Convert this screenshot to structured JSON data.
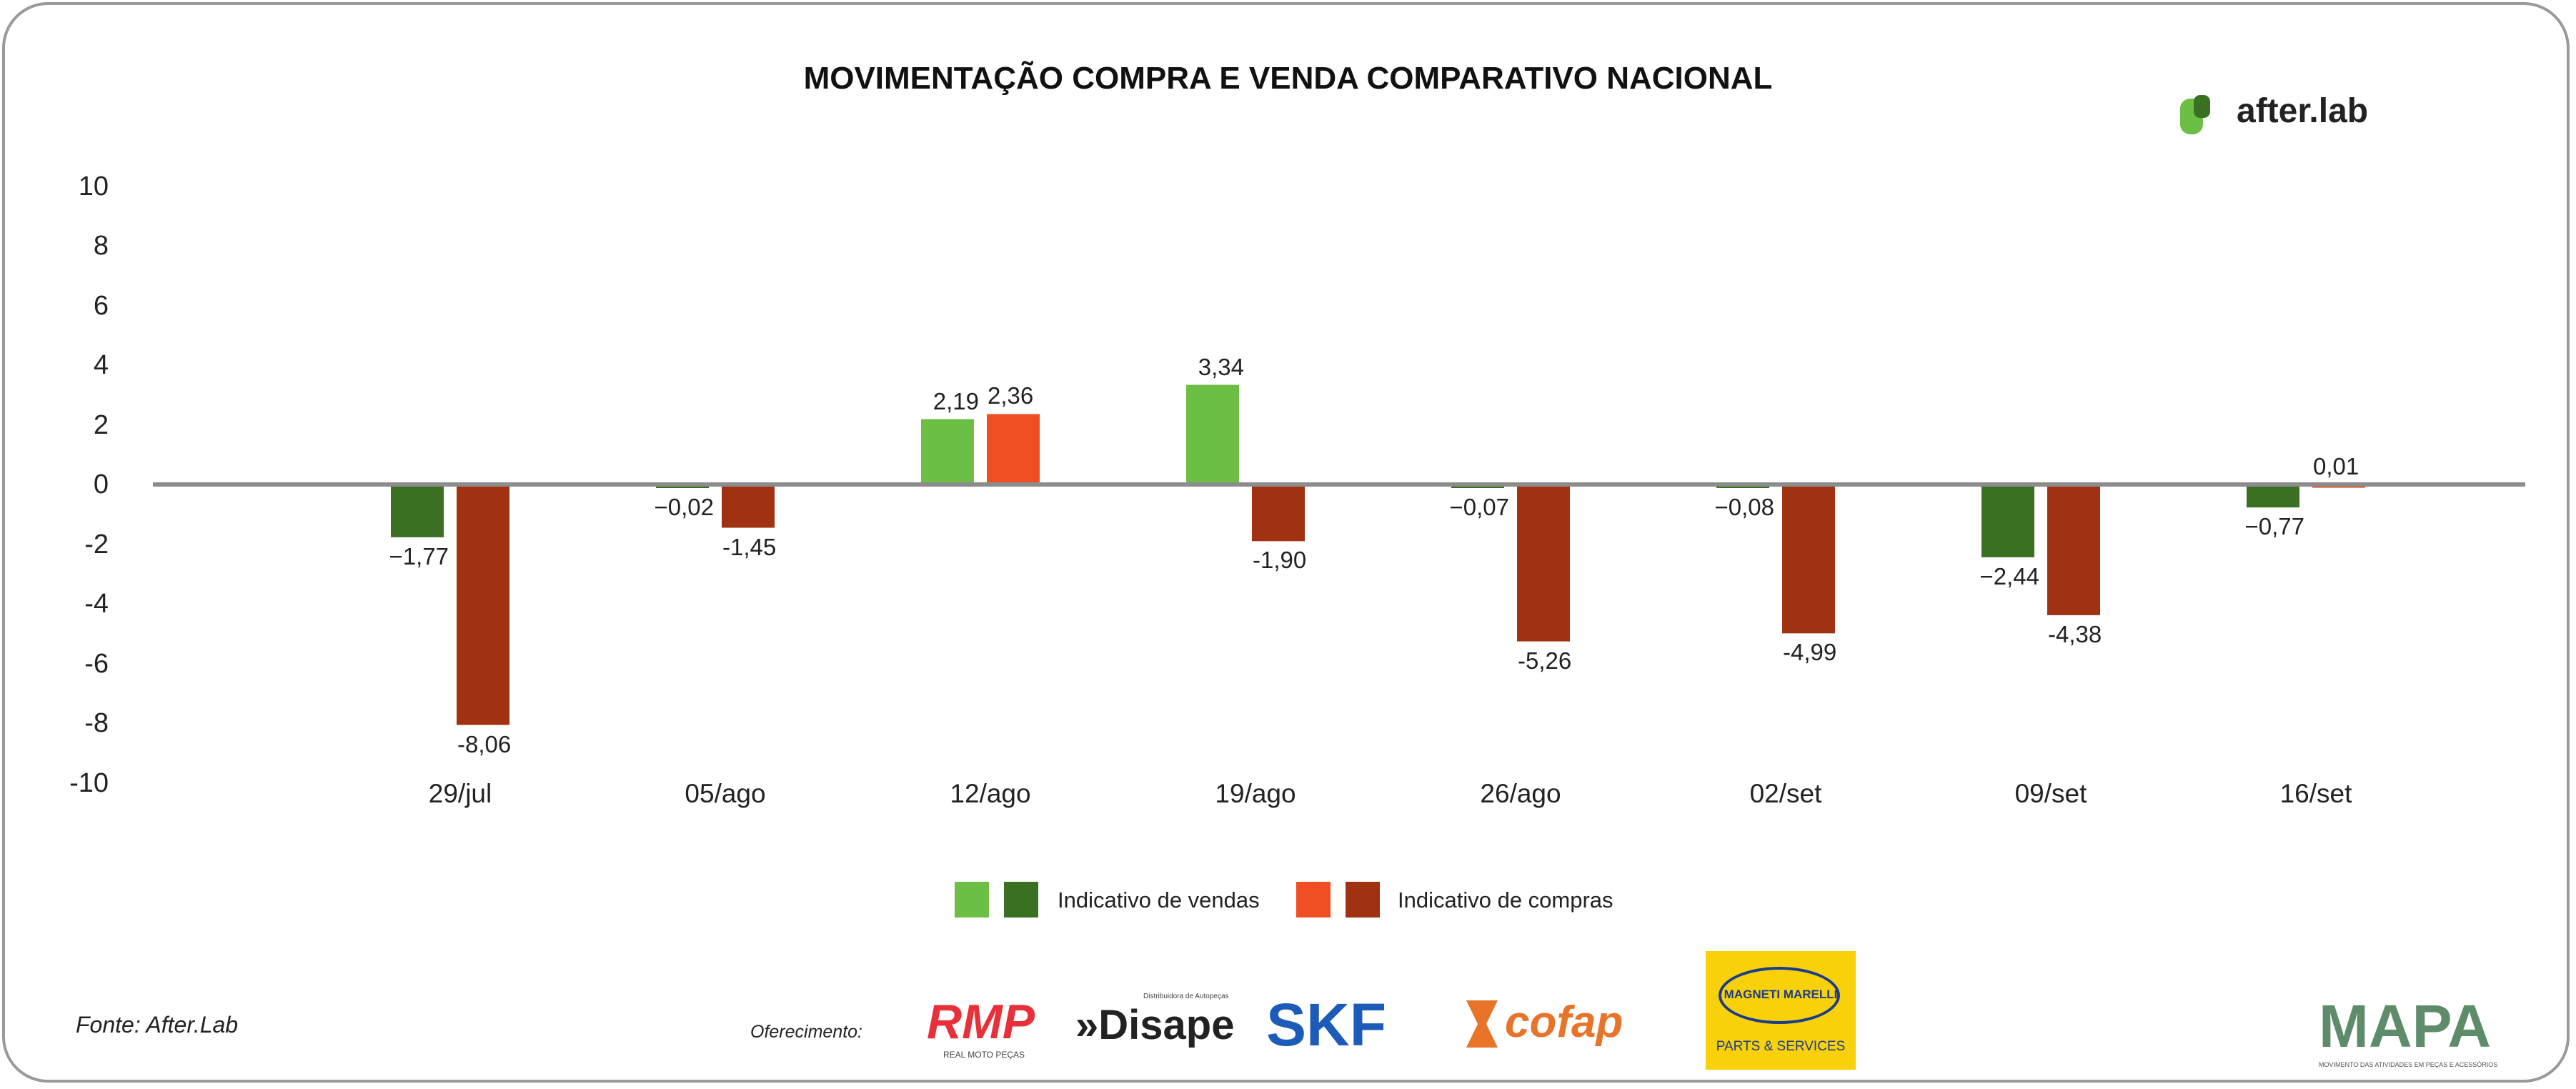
{
  "chart_data": {
    "type": "bar",
    "title": "MOVIMENTAÇÃO COMPRA E VENDA COMPARATIVO NACIONAL",
    "categories": [
      "29/jul",
      "05/ago",
      "12/ago",
      "19/ago",
      "26/ago",
      "02/set",
      "09/set",
      "16/set"
    ],
    "series": [
      {
        "name": "Indicativo de vendas",
        "values": [
          -1.77,
          -0.02,
          2.19,
          3.34,
          -0.07,
          -0.08,
          -2.44,
          -0.77
        ],
        "labels": [
          "−1,77",
          "−0,02",
          "2,19",
          "3,34",
          "−0,07",
          "−0,08",
          "−2,44",
          "−0,77"
        ],
        "color_positive": "#6DBE45",
        "color_negative": "#3A7022"
      },
      {
        "name": "Indicativo de compras",
        "values": [
          -8.06,
          -1.45,
          2.36,
          -1.9,
          -5.26,
          -4.99,
          -4.38,
          0.01
        ],
        "labels": [
          "-8,06",
          "-1,45",
          "2,36",
          "-1,90",
          "-5,26",
          "-4,99",
          "-4,38",
          "0,01"
        ],
        "color_positive": "#F04E23",
        "color_negative": "#A03212"
      }
    ],
    "ylim": [
      -10,
      10
    ],
    "yticks": [
      10,
      8,
      6,
      4,
      2,
      0,
      -2,
      -4,
      -6,
      -8,
      -10
    ],
    "grid": false,
    "legend": "bottom"
  },
  "brand": {
    "logo": "after.lab",
    "accent": "#6DBE45"
  },
  "footer": {
    "source": "Fonte: After.Lab",
    "offering": "Oferecimento:",
    "sponsors": [
      "RMP",
      "REAL MOTO PEÇAS",
      "»Disape",
      "Distribuidora de Autopeças",
      "SKF",
      "cofap",
      "MAGNETI MARELLI",
      "PARTS & SERVICES",
      "MAPA",
      "MOVIMENTO DAS ATIVIDADES EM PEÇAS E ACESSÓRIOS"
    ]
  }
}
